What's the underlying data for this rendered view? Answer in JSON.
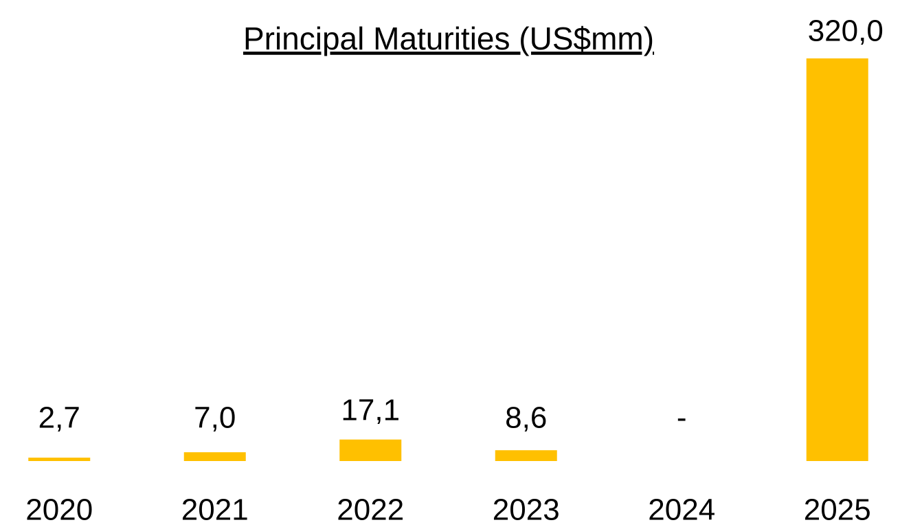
{
  "chart_data": {
    "type": "bar",
    "title": "Principal Maturities (US$mm)",
    "categories": [
      "2020",
      "2021",
      "2022",
      "2023",
      "2024",
      "2025"
    ],
    "values": [
      2.7,
      7.0,
      17.1,
      8.6,
      0,
      320.0
    ],
    "value_labels": [
      "2,7",
      "7,0",
      "17,1",
      "8,6",
      "-",
      "320,0"
    ],
    "color": "#ffc000"
  }
}
